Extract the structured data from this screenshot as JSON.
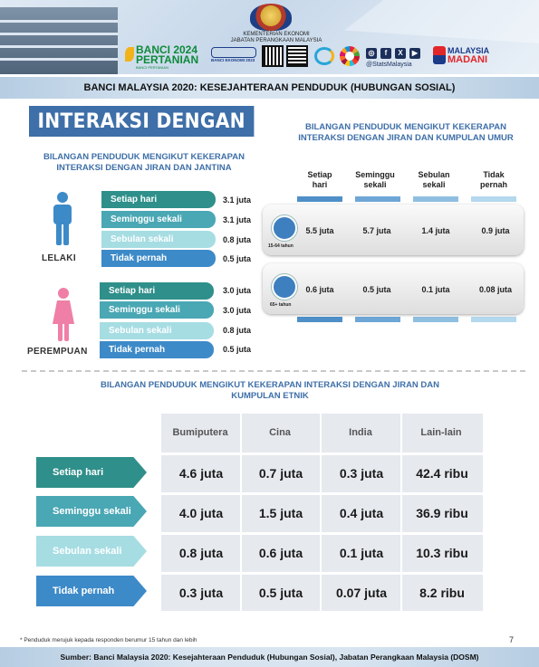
{
  "header": {
    "ministry_line1": "KEMENTERIAN EKONOMI",
    "ministry_line2": "JABATAN PERANGKAAN MALAYSIA",
    "banci_pertanian": {
      "line1": "BANCI 2024",
      "line2": "PERTANIAN",
      "tagline": "BANCI PERTANIAN"
    },
    "banci_ekonomi": "BANCI EKONOMI 2023",
    "social_icons": [
      "instagram-icon",
      "facebook-icon",
      "x-icon",
      "youtube-icon"
    ],
    "stats_handle": "@StatsMalaysia",
    "madani": {
      "line1": "MALAYSIA",
      "line2": "MADANI"
    }
  },
  "banner": {
    "title": "BANCI MALAYSIA 2020: KESEJAHTERAAN PENDUDUK (HUBUNGAN SOSIAL)"
  },
  "page_title": "INTERAKSI DENGAN JIRAN",
  "gender_section": {
    "heading": "BILANGAN PENDUDUK MENGIKUT KEKERAPAN INTERAKSI DENGAN JIRAN DAN JANTINA",
    "groups": [
      {
        "label": "LELAKI",
        "rows": [
          {
            "freq": "Setiap hari",
            "value": "3.1 juta"
          },
          {
            "freq": "Seminggu sekali",
            "value": "3.1 juta"
          },
          {
            "freq": "Sebulan sekali",
            "value": "0.8 juta"
          },
          {
            "freq": "Tidak pernah",
            "value": "0.5 juta"
          }
        ]
      },
      {
        "label": "PEREMPUAN",
        "rows": [
          {
            "freq": "Setiap hari",
            "value": "3.0 juta"
          },
          {
            "freq": "Seminggu sekali",
            "value": "3.0 juta"
          },
          {
            "freq": "Sebulan sekali",
            "value": "0.8 juta"
          },
          {
            "freq": "Tidak pernah",
            "value": "0.5 juta"
          }
        ]
      }
    ]
  },
  "age_section": {
    "heading": "BILANGAN PENDUDUK MENGIKUT KEKERAPAN INTERAKSI DENGAN JIRAN DAN KUMPULAN UMUR",
    "columns": [
      {
        "line1": "Setiap",
        "line2": "hari"
      },
      {
        "line1": "Seminggu",
        "line2": "sekali"
      },
      {
        "line1": "Sebulan",
        "line2": "sekali"
      },
      {
        "line1": "Tidak",
        "line2": "pernah"
      }
    ],
    "groups": [
      {
        "age": "15-64 tahun",
        "values": [
          "5.5 juta",
          "5.7 juta",
          "1.4 juta",
          "0.9 juta"
        ]
      },
      {
        "age": "65+ tahun",
        "values": [
          "0.6 juta",
          "0.5 juta",
          "0.1 juta",
          "0.08 juta"
        ]
      }
    ]
  },
  "ethnic_section": {
    "heading_line1": "BILANGAN PENDUDUK MENGIKUT KEKERAPAN INTERAKSI DENGAN JIRAN DAN",
    "heading_line2": "KUMPULAN ETNIK",
    "columns": [
      "Bumiputera",
      "Cina",
      "India",
      "Lain-lain"
    ],
    "rows": [
      {
        "freq": "Setiap hari",
        "values": [
          "4.6 juta",
          "0.7 juta",
          "0.3 juta",
          "42.4 ribu"
        ]
      },
      {
        "freq": "Seminggu sekali",
        "values": [
          "4.0 juta",
          "1.5 juta",
          "0.4 juta",
          "36.9 ribu"
        ]
      },
      {
        "freq": "Sebulan sekali",
        "values": [
          "0.8 juta",
          "0.6 juta",
          "0.1 juta",
          "10.3 ribu"
        ]
      },
      {
        "freq": "Tidak pernah",
        "values": [
          "0.3 juta",
          "0.5 juta",
          "0.07 juta",
          "8.2 ribu"
        ]
      }
    ]
  },
  "footnote": "* Penduduk merujuk kepada responden berumur 15 tahun dan lebih",
  "page_number": "7",
  "source": "Sumber: Banci Malaysia 2020: Kesejahteraan Penduduk (Hubungan Sosial), Jabatan Perangkaan Malaysia (DOSM)",
  "colors": {
    "accent_blue": "#3e6fa8",
    "teal_dark": "#2f8f8a",
    "teal": "#4aa7b4",
    "teal_light": "#a6dde3",
    "blue": "#3d8ac8"
  }
}
